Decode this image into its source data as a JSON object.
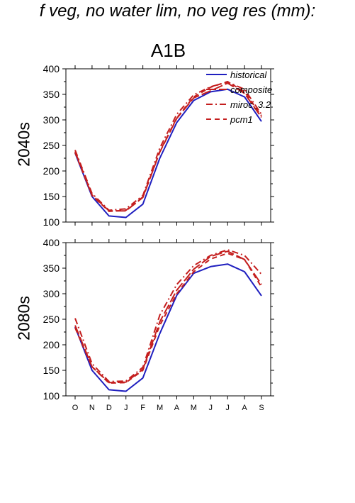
{
  "header": {
    "title": "f veg, no water lim, no veg res (mm):",
    "scenario": "A1B"
  },
  "chart_data": [
    {
      "type": "line",
      "panel_label": "2040s",
      "categories": [
        "O",
        "N",
        "D",
        "J",
        "F",
        "M",
        "A",
        "M",
        "J",
        "J",
        "A",
        "S"
      ],
      "ylim": [
        100,
        400
      ],
      "yticks": [
        100,
        150,
        200,
        250,
        300,
        350,
        400
      ],
      "grid": false,
      "legend_position": "top-right",
      "series": [
        {
          "name": "historical",
          "color": "#1f1fbf",
          "dash": "solid",
          "values": [
            235,
            150,
            112,
            109,
            135,
            225,
            295,
            338,
            355,
            360,
            345,
            297
          ]
        },
        {
          "name": "composite",
          "color": "#c41e1e",
          "dash": "longdash",
          "values": [
            238,
            153,
            122,
            122,
            148,
            237,
            303,
            343,
            357,
            372,
            352,
            305
          ]
        },
        {
          "name": "miroc_3.2",
          "color": "#c41e1e",
          "dash": "dashdot",
          "values": [
            241,
            156,
            123,
            126,
            152,
            245,
            311,
            349,
            365,
            374,
            360,
            311
          ]
        },
        {
          "name": "pcm1",
          "color": "#c41e1e",
          "dash": "dashed",
          "values": [
            236,
            152,
            121,
            123,
            149,
            238,
            304,
            345,
            364,
            375,
            355,
            308
          ]
        }
      ]
    },
    {
      "type": "line",
      "panel_label": "2080s",
      "categories": [
        "O",
        "N",
        "D",
        "J",
        "F",
        "M",
        "A",
        "M",
        "J",
        "J",
        "A",
        "S"
      ],
      "ylim": [
        100,
        400
      ],
      "yticks": [
        100,
        150,
        200,
        250,
        300,
        350,
        400
      ],
      "grid": false,
      "legend_position": "none",
      "series": [
        {
          "name": "historical",
          "color": "#1f1fbf",
          "dash": "solid",
          "values": [
            235,
            150,
            112,
            109,
            135,
            222,
            297,
            340,
            353,
            358,
            343,
            296
          ]
        },
        {
          "name": "composite",
          "color": "#c41e1e",
          "dash": "longdash",
          "values": [
            238,
            157,
            126,
            127,
            152,
            245,
            307,
            348,
            373,
            383,
            367,
            318
          ]
        },
        {
          "name": "miroc_3.2",
          "color": "#c41e1e",
          "dash": "dashdot",
          "values": [
            252,
            163,
            128,
            129,
            156,
            258,
            318,
            355,
            375,
            386,
            375,
            338
          ]
        },
        {
          "name": "pcm1",
          "color": "#c41e1e",
          "dash": "dashed",
          "values": [
            233,
            157,
            125,
            126,
            150,
            238,
            300,
            343,
            368,
            379,
            367,
            313
          ]
        }
      ]
    }
  ]
}
